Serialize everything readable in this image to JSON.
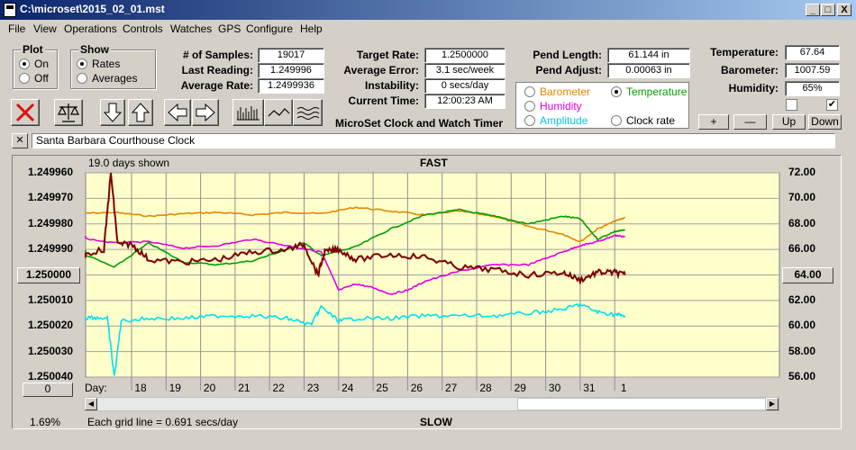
{
  "window": {
    "title": "C:\\microset\\2015_02_01.mst",
    "min": "_",
    "max": "□",
    "close": "X"
  },
  "menu": [
    "File",
    "View",
    "Operations",
    "Controls",
    "Watches",
    "GPS",
    "Configure",
    "Help"
  ],
  "plot_group": {
    "title": "Plot",
    "options": [
      "On",
      "Off"
    ],
    "selected": "On"
  },
  "show_group": {
    "title": "Show",
    "options": [
      "Rates",
      "Averages"
    ],
    "selected": "Rates"
  },
  "stats": [
    {
      "label": "# of Samples:",
      "value": "19017"
    },
    {
      "label": "Last Reading:",
      "value": "1.249996"
    },
    {
      "label": "Average Rate:",
      "value": "1.2499936"
    }
  ],
  "rates": [
    {
      "label": "Target Rate:",
      "value": "1.2500000"
    },
    {
      "label": "Average Error:",
      "value": "3.1 sec/week"
    },
    {
      "label": "Instability:",
      "value": "0 secs/day"
    },
    {
      "label": "Current Time:",
      "value": "12:00:23 AM"
    }
  ],
  "app_name": "MicroSet Clock and Watch Timer",
  "pend": [
    {
      "label": "Pend Length:",
      "value": "61.144 in"
    },
    {
      "label": "Pend Adjust:",
      "value": "0.00063 in"
    }
  ],
  "sensors": [
    {
      "label": "Temperature:",
      "value": "67.64"
    },
    {
      "label": "Barometer:",
      "value": "1007.59"
    },
    {
      "label": "Humidity:",
      "value": "65%"
    }
  ],
  "checkboxes": [
    {
      "checked": false,
      "mark": ""
    },
    {
      "checked": true,
      "mark": "✔"
    }
  ],
  "aux_plot": {
    "options": [
      {
        "label": "Barometer",
        "color": "#e08800",
        "selected": false
      },
      {
        "label": "Temperature",
        "color": "#00a000",
        "selected": true
      },
      {
        "label": "Humidity",
        "color": "#e000e0",
        "selected": false
      },
      {
        "label": "Clock rate",
        "color": "#000000",
        "selected": false
      },
      {
        "label": "Amplitude",
        "color": "#00c8e8",
        "selected": false
      }
    ]
  },
  "scale_buttons": [
    "+",
    "—",
    "Up",
    "Down"
  ],
  "clock_name": "Santa Barbara Courthouse Clock",
  "clock_close": "✕",
  "toolbar_icons": [
    "stop-icon",
    "balance-icon",
    "arrow-down-icon",
    "arrow-up-icon",
    "arrow-left-icon",
    "arrow-right-icon",
    "bar-chart-icon",
    "line-chart-icon",
    "wave-chart-icon"
  ],
  "chart": {
    "days_shown": "19.0 days shown",
    "top_label": "FAST",
    "bottom_label": "SLOW",
    "grid_note": "Each grid line = 0.691 secs/day",
    "left_pct": "1.69%",
    "center_left_button": "1.250000",
    "center_right_button": "64.00",
    "offset_button": "0",
    "day_prefix": "Day:"
  },
  "chart_data": {
    "type": "line",
    "left_axis_ticks": [
      "1.249960",
      "1.249970",
      "1.249980",
      "1.249990",
      "1.250000",
      "1.250010",
      "1.250020",
      "1.250030",
      "1.250040"
    ],
    "left_axis_range": [
      1.24996,
      1.25004
    ],
    "left_axis_inverted": true,
    "right_axis_ticks": [
      "72.00",
      "70.00",
      "68.00",
      "66.00",
      "64.00",
      "62.00",
      "60.00",
      "58.00",
      "56.00"
    ],
    "right_axis_range": [
      56,
      72
    ],
    "x_ticks": [
      "18",
      "19",
      "20",
      "21",
      "22",
      "23",
      "24",
      "25",
      "26",
      "27",
      "28",
      "29",
      "30",
      "31",
      "1"
    ],
    "grid": true,
    "series": [
      {
        "color": "#e08800",
        "axis": "right",
        "x": [
          16.3,
          17.5,
          18.5,
          19.5,
          20.5,
          21.5,
          22.5,
          23.5,
          24.5,
          25.5,
          26.5,
          27.5,
          28.5,
          29.5,
          30.5,
          31.0,
          31.5,
          32.0,
          32.3
        ],
        "y": [
          68.8,
          68.9,
          68.6,
          68.8,
          68.9,
          68.7,
          68.9,
          68.8,
          69.3,
          69.0,
          68.7,
          69.0,
          68.6,
          67.8,
          67.2,
          66.6,
          67.6,
          68.2,
          68.5
        ]
      },
      {
        "color": "#00a000",
        "axis": "right",
        "x": [
          16.3,
          17.5,
          18.5,
          19.5,
          20.5,
          21.5,
          22.5,
          23.0,
          23.5,
          24.5,
          25.5,
          26.5,
          27.5,
          28.5,
          29.5,
          30.5,
          31.0,
          31.5,
          32.0,
          32.3
        ],
        "y": [
          66.0,
          64.6,
          66.5,
          65.0,
          64.8,
          65.1,
          66.0,
          66.5,
          65.5,
          66.2,
          67.6,
          68.7,
          69.1,
          68.6,
          68.0,
          68.6,
          68.4,
          66.8,
          67.4,
          67.5
        ]
      },
      {
        "color": "#e000e0",
        "axis": "right",
        "x": [
          16.3,
          17.5,
          18.5,
          19.5,
          20.5,
          21.5,
          22.5,
          23.5,
          24.0,
          24.5,
          25.0,
          25.5,
          26.0,
          26.5,
          27.5,
          28.5,
          29.5,
          30.5,
          31.0,
          31.5,
          32.0,
          32.3
        ],
        "y": [
          67.0,
          66.5,
          66.6,
          66.1,
          66.3,
          66.8,
          66.3,
          65.8,
          62.8,
          63.3,
          63.0,
          62.5,
          62.8,
          63.5,
          64.3,
          64.8,
          64.8,
          65.8,
          66.3,
          66.6,
          67.1,
          67.0
        ]
      },
      {
        "color": "#7a0000",
        "axis": "left",
        "x": [
          16.3,
          17.2,
          17.4,
          17.6,
          18.0,
          18.5,
          19.5,
          20.5,
          21.5,
          22.5,
          23.0,
          23.4,
          23.6,
          24.0,
          24.5,
          25.5,
          26.5,
          27.5,
          28.5,
          29.5,
          30.5,
          31.0,
          31.5,
          32.0,
          32.3
        ],
        "y": [
          1.249993,
          1.24999,
          1.24996,
          1.249988,
          1.249988,
          1.249994,
          1.249995,
          1.249994,
          1.249991,
          1.24999,
          1.249988,
          1.25,
          1.249991,
          1.24999,
          1.249994,
          1.249992,
          1.249993,
          1.249997,
          1.249998,
          1.25,
          1.249999,
          1.250002,
          1.249999,
          1.249999,
          1.25
        ]
      },
      {
        "color": "#00e0f0",
        "axis": "right",
        "x": [
          16.3,
          16.8,
          17.3,
          17.5,
          17.7,
          18.5,
          19.5,
          20.5,
          21.5,
          22.5,
          23.2,
          23.5,
          24.0,
          24.5,
          25.5,
          26.5,
          27.5,
          28.5,
          29.5,
          30.5,
          31.0,
          31.5,
          32.0,
          32.3
        ],
        "y": [
          60.5,
          60.7,
          60.6,
          56.0,
          60.4,
          60.6,
          60.6,
          60.8,
          60.8,
          60.6,
          60.1,
          61.5,
          60.4,
          60.6,
          60.6,
          60.8,
          60.8,
          60.8,
          61.0,
          61.3,
          61.7,
          61.1,
          60.9,
          60.8
        ]
      }
    ]
  }
}
